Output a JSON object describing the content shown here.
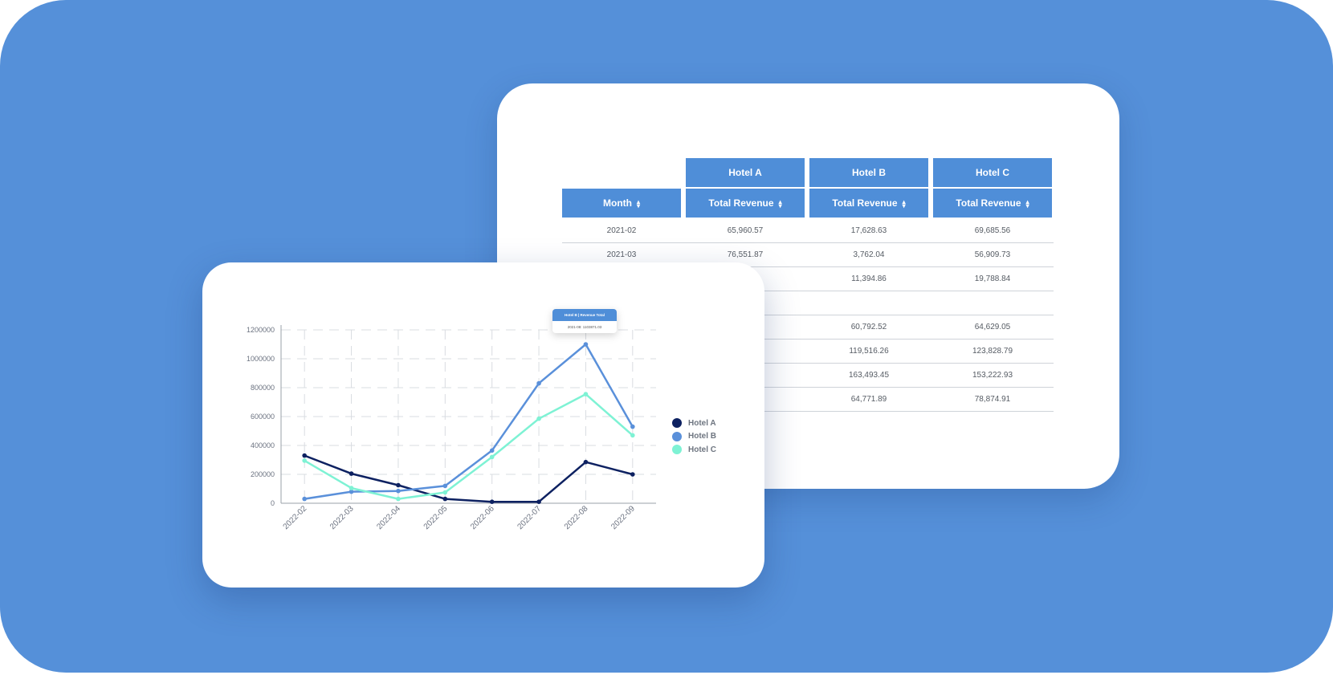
{
  "table": {
    "groups": [
      {
        "label": "Hotel A"
      },
      {
        "label": "Hotel B"
      },
      {
        "label": "Hotel C"
      }
    ],
    "columns": [
      {
        "label": "Month"
      },
      {
        "label": "Total Revenue"
      },
      {
        "label": "Total Revenue"
      },
      {
        "label": "Total Revenue"
      }
    ],
    "rows": [
      [
        "2021-02",
        "65,960.57",
        "17,628.63",
        "69,685.56"
      ],
      [
        "2021-03",
        "76,551.87",
        "3,762.04",
        "56,909.73"
      ],
      [
        "",
        "",
        "11,394.86",
        "19,788.84"
      ],
      [
        "",
        "",
        "",
        ""
      ],
      [
        "",
        "",
        "60,792.52",
        "64,629.05"
      ],
      [
        "",
        "",
        "119,516.26",
        "123,828.79"
      ],
      [
        "",
        "",
        "163,493.45",
        "153,222.93"
      ],
      [
        "",
        "",
        "64,771.89",
        "78,874.91"
      ]
    ]
  },
  "tooltip": {
    "title": "Hotel B | Revenue Total",
    "value": "2021-08: 1103871.03"
  },
  "chart_data": {
    "type": "line",
    "categories": [
      "2022-02",
      "2022-03",
      "2022-04",
      "2022-05",
      "2022-06",
      "2022-07",
      "2022-08",
      "2022-09"
    ],
    "y_ticks": [
      "0",
      "200000",
      "400000",
      "600000",
      "800000",
      "1000000",
      "1200000"
    ],
    "ylim": [
      0,
      1200000
    ],
    "grid": true,
    "legend_position": "right",
    "series": [
      {
        "name": "Hotel A",
        "color": "#0d2161",
        "values": [
          330000,
          205000,
          125000,
          30000,
          10000,
          10000,
          285000,
          200000
        ]
      },
      {
        "name": "Hotel B",
        "color": "#5a90da",
        "values": [
          30000,
          80000,
          85000,
          120000,
          365000,
          830000,
          1100000,
          530000
        ]
      },
      {
        "name": "Hotel C",
        "color": "#7ef2d4",
        "values": [
          295000,
          105000,
          30000,
          75000,
          320000,
          585000,
          755000,
          470000
        ]
      }
    ]
  }
}
